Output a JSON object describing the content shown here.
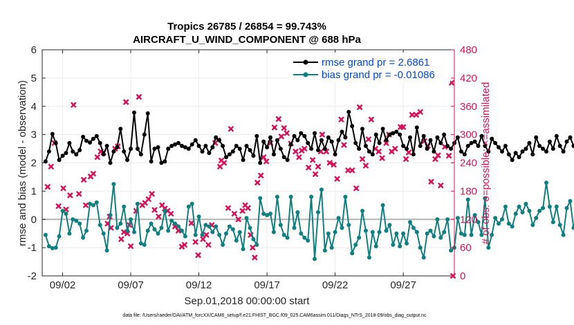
{
  "chart_data": {
    "type": "line",
    "title_line1": "Tropics 26785 / 26854 = 99.743%",
    "title_line2": "AIRCRAFT_U_WIND_COMPONENT @ 688 hPa",
    "xlabel": "Sep.01,2018 00:00:00 start",
    "ylabel_left": "rmse and bias (model - observation)",
    "ylabel_right": "# of obs: o=possible; ×=assimilated",
    "footnote": "data file: /Users/raeder/DAI/ATM_forcXX/CAM6_setup/f.e21.FHIST_BGC.f09_025.CAM6assim.011/Diags_NTrS_2018-09/obs_diag_output.nc",
    "x_range": [
      0.5,
      30.75
    ],
    "y_left_range": [
      -2,
      6
    ],
    "y_right_range": [
      0,
      480
    ],
    "x_ticks": [
      2,
      7,
      12,
      17,
      22,
      27
    ],
    "x_tick_labels": [
      "09/02",
      "09/07",
      "09/12",
      "09/17",
      "09/22",
      "09/27"
    ],
    "y_left_ticks": [
      -2,
      -1,
      0,
      1,
      2,
      3,
      4,
      5,
      6
    ],
    "y_right_ticks": [
      0,
      60,
      120,
      180,
      240,
      300,
      360,
      420,
      480
    ],
    "zero_line": 0,
    "legend": [
      {
        "label": "rmse grand pr = 2.6861",
        "color": "#000000"
      },
      {
        "label": "bias grand pr = -0.01086",
        "color": "#0f7f7f"
      }
    ],
    "colors": {
      "rmse": "#000000",
      "bias": "#0f7f7f",
      "obs": "#d6145a",
      "zero": "#b3b3b3"
    },
    "x_start": 0.75,
    "x_step": 0.25,
    "rmse": [
      2.05,
      2.4,
      3.02,
      2.7,
      2.1,
      2.25,
      2.35,
      2.7,
      2.4,
      2.3,
      2.45,
      2.92,
      2.78,
      2.72,
      2.85,
      2.95,
      2.7,
      2.3,
      2.6,
      2.0,
      2.4,
      2.55,
      3.2,
      2.4,
      2.1,
      2.5,
      3.78,
      2.5,
      2.3,
      3.0,
      3.75,
      2.05,
      2.5,
      2.55,
      2.0,
      2.05,
      2.5,
      2.6,
      2.65,
      2.7,
      2.6,
      2.55,
      2.5,
      2.65,
      2.8,
      2.6,
      2.4,
      2.6,
      2.35,
      2.55,
      2.9,
      2.8,
      2.6,
      2.2,
      2.3,
      2.4,
      2.6,
      2.5,
      2.1,
      2.6,
      2.45,
      2.25,
      2.95,
      2.0,
      2.75,
      2.55,
      2.9,
      2.3,
      2.8,
      2.5,
      2.2,
      2.1,
      2.65,
      2.95,
      2.8,
      3.05,
      2.95,
      2.7,
      2.5,
      3.05,
      2.45,
      2.8,
      2.5,
      2.9,
      2.75,
      2.3,
      2.8,
      3.1,
      2.9,
      3.8,
      3.3,
      2.7,
      2.5,
      3.2,
      2.6,
      2.4,
      2.3,
      3.0,
      2.7,
      3.2,
      2.8,
      3.0,
      3.05,
      3.1,
      3.0,
      2.6,
      2.5,
      2.9,
      2.3,
      3.25,
      2.6,
      2.95,
      2.5,
      2.8,
      2.4,
      2.9,
      2.7,
      3.0,
      2.6,
      2.5,
      2.7,
      2.9,
      2.4,
      2.3,
      2.6,
      2.7,
      2.75,
      2.6,
      2.95,
      2.6,
      2.4,
      2.85,
      2.7,
      2.55,
      2.4,
      2.6,
      2.3,
      2.1,
      2.35,
      2.2,
      2.4,
      2.5,
      2.7,
      2.3,
      2.9,
      2.6,
      2.5,
      2.4,
      2.75,
      2.5,
      2.95,
      2.6,
      2.4,
      2.75,
      2.9,
      2.6,
      2.3,
      2.8,
      2.65,
      2.4,
      2.35
    ],
    "bias": [
      -0.55,
      -0.95,
      -1.02,
      -1.0,
      -0.6,
      0.3,
      0.2,
      -0.5,
      0.0,
      -0.05,
      -0.15,
      -0.65,
      -0.4,
      0.55,
      0.5,
      0.6,
      -0.2,
      -0.5,
      -1.1,
      0.15,
      1.25,
      -0.3,
      -0.15,
      0.45,
      -0.4,
      0.0,
      -0.45,
      0.55,
      -0.85,
      -0.9,
      -0.4,
      -0.15,
      -0.35,
      -0.5,
      -0.3,
      0.3,
      -0.4,
      -0.05,
      -0.15,
      -0.25,
      -0.4,
      -0.6,
      0.45,
      0.55,
      -0.55,
      0.1,
      -0.55,
      -0.2,
      -0.25,
      -0.45,
      -0.25,
      -0.55,
      -0.9,
      -0.5,
      -0.25,
      -0.35,
      -0.75,
      -0.45,
      -1.05,
      0.05,
      -0.3,
      -0.7,
      -0.9,
      0.75,
      0.2,
      0.15,
      0.2,
      -0.45,
      0.8,
      -0.2,
      -0.55,
      -0.65,
      0.8,
      -0.3,
      0.25,
      -0.5,
      -0.65,
      -0.75,
      0.8,
      -1.4,
      0.25,
      1.05,
      -1.1,
      -0.5,
      -1.0,
      -0.45,
      0.05,
      -0.3,
      0.8,
      -0.2,
      -1.2,
      -0.9,
      -0.65,
      0.3,
      -0.4,
      -1.35,
      -0.45,
      -0.95,
      -0.45,
      0.5,
      -0.4,
      -0.2,
      -0.9,
      -0.5,
      -0.95,
      -0.5,
      -0.85,
      -0.1,
      -0.3,
      -0.45,
      -1.0,
      -1.35,
      -0.5,
      -0.4,
      -0.6,
      0.0,
      -0.65,
      -0.45,
      0.0,
      -1.1,
      -1.0,
      0.05,
      -0.5,
      -0.55,
      0.7,
      -0.55,
      0.15,
      -0.1,
      -0.55,
      0.75,
      -1.0,
      -0.55,
      0.05,
      -0.15,
      0.0,
      0.45,
      -0.15,
      -0.25,
      0.2,
      0.45,
      0.25,
      0.55,
      0.3,
      -0.2,
      0.05,
      0.3,
      0.4,
      1.3,
      0.45,
      -0.1,
      0.45,
      -0.2,
      -0.55,
      0.4,
      0.65,
      -0.3,
      0.05,
      0.55,
      0.75
    ],
    "obs_assimilated": [
      [
        0.9,
        189
      ],
      [
        1.15,
        232
      ],
      [
        1.4,
        282
      ],
      [
        1.7,
        148
      ],
      [
        2.05,
        186
      ],
      [
        2.25,
        141
      ],
      [
        2.55,
        171
      ],
      [
        2.8,
        363
      ],
      [
        3.2,
        174
      ],
      [
        3.55,
        204
      ],
      [
        3.7,
        150
      ],
      [
        4.05,
        211
      ],
      [
        4.25,
        217
      ],
      [
        4.55,
        252
      ],
      [
        4.8,
        264
      ],
      [
        5.0,
        262
      ],
      [
        5.3,
        111
      ],
      [
        5.45,
        126
      ],
      [
        5.55,
        102
      ],
      [
        5.85,
        270
      ],
      [
        6.05,
        275
      ],
      [
        6.3,
        78
      ],
      [
        6.5,
        93
      ],
      [
        6.65,
        369
      ],
      [
        6.75,
        90
      ],
      [
        6.9,
        108
      ],
      [
        7.0,
        63
      ],
      [
        7.4,
        138
      ],
      [
        7.6,
        380
      ],
      [
        7.85,
        150
      ],
      [
        8.05,
        155
      ],
      [
        8.3,
        163
      ],
      [
        8.55,
        174
      ],
      [
        8.75,
        140
      ],
      [
        9.05,
        126
      ],
      [
        9.3,
        150
      ],
      [
        9.5,
        143
      ],
      [
        9.7,
        138
      ],
      [
        9.95,
        132
      ],
      [
        10.25,
        105
      ],
      [
        10.5,
        96
      ],
      [
        10.75,
        62
      ],
      [
        10.95,
        66
      ],
      [
        11.45,
        112
      ],
      [
        11.75,
        72
      ],
      [
        11.95,
        44
      ],
      [
        12.3,
        78
      ],
      [
        12.55,
        87
      ],
      [
        12.7,
        66
      ],
      [
        12.95,
        108
      ],
      [
        13.2,
        282
      ],
      [
        13.4,
        288
      ],
      [
        13.55,
        232
      ],
      [
        13.65,
        245
      ],
      [
        13.85,
        240
      ],
      [
        14.15,
        144
      ],
      [
        14.35,
        312
      ],
      [
        14.6,
        132
      ],
      [
        14.9,
        120
      ],
      [
        15.2,
        138
      ],
      [
        15.4,
        150
      ],
      [
        15.6,
        144
      ],
      [
        15.8,
        87
      ],
      [
        15.95,
        60
      ],
      [
        16.1,
        39
      ],
      [
        16.3,
        198
      ],
      [
        16.55,
        213
      ],
      [
        16.75,
        252
      ],
      [
        16.95,
        243
      ],
      [
        17.25,
        282
      ],
      [
        17.55,
        315
      ],
      [
        17.85,
        333
      ],
      [
        18.05,
        296
      ],
      [
        18.25,
        314
      ],
      [
        18.45,
        303
      ],
      [
        18.75,
        281
      ],
      [
        19.1,
        264
      ],
      [
        19.35,
        252
      ],
      [
        19.55,
        266
      ],
      [
        19.75,
        270
      ],
      [
        20.05,
        230
      ],
      [
        20.35,
        246
      ],
      [
        20.55,
        216
      ],
      [
        20.75,
        232
      ],
      [
        20.95,
        264
      ],
      [
        21.05,
        300
      ],
      [
        21.35,
        264
      ],
      [
        21.6,
        240
      ],
      [
        21.9,
        236
      ],
      [
        22.15,
        206
      ],
      [
        22.45,
        332
      ],
      [
        22.65,
        278
      ],
      [
        22.95,
        224
      ],
      [
        23.25,
        224
      ],
      [
        23.55,
        186
      ],
      [
        23.8,
        358
      ],
      [
        24.0,
        248
      ],
      [
        24.25,
        234
      ],
      [
        24.45,
        290
      ],
      [
        24.65,
        332
      ],
      [
        24.95,
        270
      ],
      [
        25.2,
        264
      ],
      [
        25.45,
        250
      ],
      [
        25.75,
        282
      ],
      [
        25.95,
        300
      ],
      [
        26.15,
        264
      ],
      [
        26.4,
        270
      ],
      [
        26.8,
        316
      ],
      [
        27.0,
        316
      ],
      [
        27.2,
        248
      ],
      [
        27.4,
        262
      ],
      [
        27.65,
        342
      ],
      [
        27.95,
        342
      ],
      [
        28.25,
        348
      ],
      [
        28.55,
        286
      ],
      [
        28.8,
        276
      ],
      [
        29.05,
        200
      ],
      [
        29.35,
        248
      ],
      [
        29.55,
        256
      ],
      [
        29.75,
        192
      ],
      [
        30.05,
        274
      ],
      [
        30.35,
        255
      ],
      [
        30.55,
        410
      ],
      [
        30.65,
        0
      ]
    ]
  }
}
